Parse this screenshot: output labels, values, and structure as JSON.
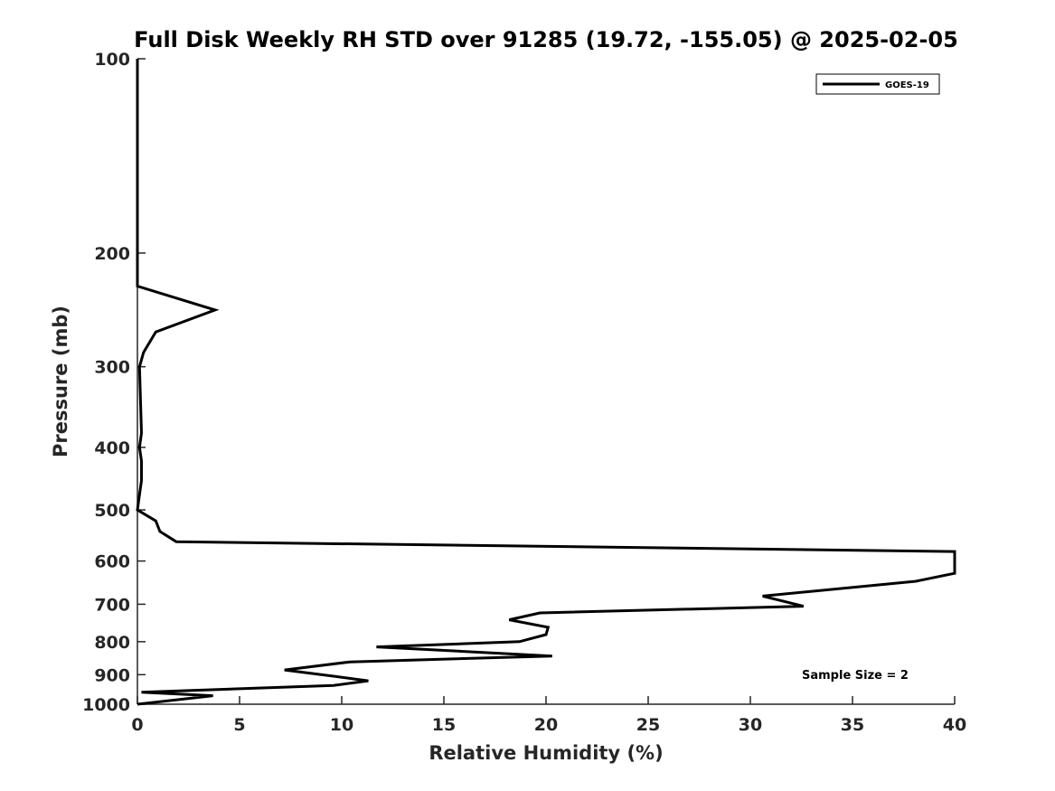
{
  "chart_data": {
    "type": "line",
    "title": "Full Disk Weekly RH STD over 91285 (19.72, -155.05) @ 2025-02-05",
    "xlabel": "Relative Humidity (%)",
    "ylabel": "Pressure (mb)",
    "xlim": [
      0,
      40
    ],
    "ylim": [
      100,
      1000
    ],
    "y_scale": "log",
    "y_reversed": true,
    "grid": false,
    "legend_position": "top-right",
    "x_ticks": [
      0,
      5,
      10,
      15,
      20,
      25,
      30,
      35,
      40
    ],
    "x_tick_labels": [
      "0",
      "5",
      "10",
      "15",
      "20",
      "25",
      "30",
      "35",
      "40"
    ],
    "y_ticks": [
      100,
      200,
      300,
      400,
      500,
      600,
      700,
      800,
      900,
      1000
    ],
    "y_tick_labels": [
      "100",
      "200",
      "300",
      "400",
      "500",
      "600",
      "700",
      "800",
      "900",
      "1000"
    ],
    "series": [
      {
        "name": "GOES-19",
        "color": "#000000",
        "x": [
          0,
          0,
          0,
          3.8,
          0.9,
          0.3,
          0.1,
          0.2,
          0.1,
          0.2,
          0.2,
          0.0,
          0.9,
          1.1,
          1.9,
          40,
          40,
          38.1,
          30.6,
          32.6,
          19.7,
          18.2,
          20.1,
          20.0,
          18.7,
          11.7,
          20.3,
          10.4,
          7.2,
          9.6,
          11.3,
          9.6,
          0.2,
          3.7,
          0.0
        ],
        "y": [
          100,
          200,
          225,
          245,
          265,
          285,
          300,
          380,
          400,
          420,
          450,
          500,
          520,
          540,
          560,
          580,
          627,
          645,
          680,
          705,
          722,
          740,
          760,
          780,
          800,
          815,
          842,
          860,
          885,
          905,
          920,
          935,
          958,
          970,
          1000
        ]
      }
    ],
    "legend": [
      "GOES-19"
    ],
    "annotations": [
      "Sample Size = 2"
    ]
  }
}
